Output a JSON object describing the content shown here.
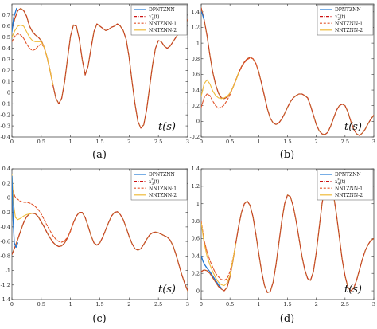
{
  "colors": {
    "DPNTZNN": "#1f77d4",
    "x1_star": "#cc1111",
    "NNTZNN-1": "#e2542a",
    "NNTZNN-2": "#efbb3a",
    "overlap": "#c46a32"
  },
  "chart_data": [
    {
      "type": "line",
      "panel": "a",
      "caption": "(a)",
      "xlabel": "t(s)",
      "xlim": [
        0,
        3
      ],
      "ylim": [
        -0.4,
        0.8
      ],
      "xticks": [
        0,
        0.5,
        1,
        1.5,
        2,
        2.5,
        3
      ],
      "xtick_labels": [
        "0",
        "0.5",
        "1",
        "1.5",
        "2",
        "2.5",
        "3"
      ],
      "yticks": [
        -0.4,
        -0.3,
        -0.2,
        -0.1,
        0,
        0.1,
        0.2,
        0.3,
        0.4,
        0.5,
        0.6,
        0.7
      ],
      "ytick_labels": [
        "-0.4",
        "-0.3",
        "-0.2",
        "-0.1",
        "0",
        "0.1",
        "0.2",
        "0.3",
        "0.4",
        "0.5",
        "0.6",
        "0.7"
      ],
      "legend": {
        "position": "top-right",
        "entries": [
          "DPNTZNN",
          "x_1^*(t)",
          "NNTZNN-1",
          "NNTZNN-2"
        ]
      },
      "series": [
        {
          "name": "DPNTZNN",
          "style": "solid",
          "x": [
            0,
            0.03,
            0.08
          ],
          "y": [
            0.55,
            0.68,
            0.76
          ]
        },
        {
          "name": "x_1^*(t)",
          "style": "dashdot",
          "x": [
            0,
            0.05,
            0.1,
            0.15,
            0.2,
            0.25,
            0.3,
            0.35,
            0.4,
            0.45,
            0.5,
            0.55,
            0.6,
            0.65,
            0.7,
            0.75,
            0.8,
            0.85,
            0.9,
            0.95,
            1.0,
            1.05,
            1.1,
            1.15,
            1.2,
            1.25,
            1.3,
            1.35,
            1.4,
            1.45,
            1.5,
            1.55,
            1.6,
            1.65,
            1.7,
            1.75,
            1.8,
            1.85,
            1.9,
            1.95,
            2.0,
            2.05,
            2.1,
            2.15,
            2.2,
            2.25,
            2.3,
            2.35,
            2.4,
            2.45,
            2.5,
            2.55,
            2.6,
            2.65,
            2.7,
            2.75,
            2.8,
            2.85,
            2.9,
            2.95,
            3.0
          ],
          "y": [
            0.57,
            0.67,
            0.74,
            0.76,
            0.74,
            0.69,
            0.6,
            0.55,
            0.52,
            0.5,
            0.47,
            0.41,
            0.32,
            0.2,
            0.07,
            -0.05,
            -0.1,
            -0.05,
            0.1,
            0.31,
            0.51,
            0.61,
            0.6,
            0.48,
            0.3,
            0.16,
            0.24,
            0.4,
            0.55,
            0.62,
            0.6,
            0.58,
            0.56,
            0.57,
            0.59,
            0.6,
            0.62,
            0.6,
            0.56,
            0.48,
            0.32,
            0.1,
            -0.1,
            -0.26,
            -0.32,
            -0.29,
            -0.15,
            0.05,
            0.25,
            0.4,
            0.47,
            0.46,
            0.42,
            0.4,
            0.42,
            0.46,
            0.5,
            0.54,
            0.58,
            0.62,
            0.66
          ]
        },
        {
          "name": "NNTZNN-1",
          "style": "dashed",
          "x": [
            0,
            0.05,
            0.1,
            0.15,
            0.2,
            0.25,
            0.3,
            0.35,
            0.4,
            0.45,
            0.5,
            0.55,
            0.6,
            0.65,
            0.7
          ],
          "y": [
            0.46,
            0.51,
            0.53,
            0.52,
            0.49,
            0.44,
            0.4,
            0.38,
            0.39,
            0.42,
            0.44,
            0.41,
            0.32,
            0.2,
            0.07
          ]
        },
        {
          "name": "NNTZNN-2",
          "style": "solid",
          "x": [
            0,
            0.05,
            0.1,
            0.15,
            0.2,
            0.25,
            0.3,
            0.35,
            0.4,
            0.45,
            0.5,
            0.55,
            0.6,
            0.65,
            0.7
          ],
          "y": [
            0.5,
            0.56,
            0.6,
            0.61,
            0.6,
            0.55,
            0.5,
            0.47,
            0.46,
            0.46,
            0.46,
            0.41,
            0.32,
            0.2,
            0.07
          ]
        }
      ]
    },
    {
      "type": "line",
      "panel": "b",
      "caption": "(b)",
      "xlabel": "t(s)",
      "xlim": [
        0,
        3
      ],
      "ylim": [
        -0.2,
        1.5
      ],
      "xticks": [
        0,
        0.5,
        1,
        1.5,
        2,
        2.5,
        3
      ],
      "xtick_labels": [
        "0",
        "0.5",
        "1",
        "1.5",
        "2",
        "2.5",
        "3"
      ],
      "yticks": [
        -0.2,
        0,
        0.2,
        0.4,
        0.6,
        0.8,
        1,
        1.2,
        1.4
      ],
      "ytick_labels": [
        "-0.2",
        "0",
        "0.2",
        "0.4",
        "0.6",
        "0.8",
        "1",
        "1.2",
        "1.4"
      ],
      "legend": {
        "position": "top-right",
        "entries": [
          "DPNTZNN",
          "x_2^*(t)",
          "NNTZNN-1",
          "NNTZNN-2"
        ]
      },
      "series": [
        {
          "name": "DPNTZNN",
          "style": "solid",
          "x": [
            0,
            0.02,
            0.05
          ],
          "y": [
            1.4,
            1.37,
            1.3
          ]
        },
        {
          "name": "x_2^*(t)",
          "style": "dashdot",
          "x": [
            0,
            0.05,
            0.1,
            0.15,
            0.2,
            0.25,
            0.3,
            0.35,
            0.4,
            0.45,
            0.5,
            0.55,
            0.6,
            0.65,
            0.7,
            0.75,
            0.8,
            0.85,
            0.9,
            0.95,
            1.0,
            1.05,
            1.1,
            1.15,
            1.2,
            1.25,
            1.3,
            1.35,
            1.4,
            1.45,
            1.5,
            1.55,
            1.6,
            1.65,
            1.7,
            1.75,
            1.8,
            1.85,
            1.9,
            1.95,
            2.0,
            2.05,
            2.1,
            2.15,
            2.2,
            2.25,
            2.3,
            2.35,
            2.4,
            2.45,
            2.5,
            2.55,
            2.6,
            2.65,
            2.7,
            2.75,
            2.8,
            2.85,
            2.9,
            2.95,
            3.0
          ],
          "y": [
            1.45,
            1.3,
            1.1,
            0.85,
            0.63,
            0.47,
            0.36,
            0.3,
            0.29,
            0.31,
            0.36,
            0.43,
            0.52,
            0.62,
            0.7,
            0.76,
            0.8,
            0.82,
            0.8,
            0.74,
            0.63,
            0.48,
            0.32,
            0.16,
            0.04,
            -0.02,
            -0.04,
            -0.02,
            0.03,
            0.1,
            0.18,
            0.25,
            0.3,
            0.33,
            0.35,
            0.35,
            0.33,
            0.3,
            0.2,
            0.08,
            -0.04,
            -0.12,
            -0.16,
            -0.17,
            -0.14,
            -0.06,
            0.04,
            0.14,
            0.2,
            0.22,
            0.2,
            0.12,
            0.0,
            -0.1,
            -0.16,
            -0.18,
            -0.15,
            -0.1,
            -0.03,
            0.03,
            0.08
          ]
        },
        {
          "name": "NNTZNN-1",
          "style": "dashed",
          "x": [
            0,
            0.05,
            0.1,
            0.15,
            0.2,
            0.25,
            0.3,
            0.35,
            0.4,
            0.45,
            0.5,
            0.55,
            0.6,
            0.65,
            0.7,
            0.75,
            0.8,
            0.85,
            0.9,
            0.95,
            1.0
          ],
          "y": [
            0.18,
            0.3,
            0.35,
            0.33,
            0.26,
            0.2,
            0.17,
            0.18,
            0.21,
            0.27,
            0.34,
            0.43,
            0.53,
            0.62,
            0.69,
            0.75,
            0.79,
            0.81,
            0.8,
            0.74,
            0.63
          ]
        },
        {
          "name": "NNTZNN-2",
          "style": "solid",
          "x": [
            0,
            0.05,
            0.1,
            0.15,
            0.2,
            0.25,
            0.3,
            0.35,
            0.4,
            0.45,
            0.5,
            0.55,
            0.6,
            0.65
          ],
          "y": [
            0.32,
            0.48,
            0.53,
            0.48,
            0.39,
            0.33,
            0.3,
            0.29,
            0.3,
            0.32,
            0.36,
            0.43,
            0.52,
            0.62
          ]
        }
      ]
    },
    {
      "type": "line",
      "panel": "c",
      "caption": "(c)",
      "xlabel": "t(s)",
      "xlim": [
        0,
        3
      ],
      "ylim": [
        -1.4,
        0.4
      ],
      "xticks": [
        0,
        0.5,
        1,
        1.5,
        2,
        2.5,
        3
      ],
      "xtick_labels": [
        "0",
        "0.5",
        "1",
        "1.5",
        "2",
        "2.5",
        "3"
      ],
      "yticks": [
        -1.4,
        -1.2,
        -1,
        -0.8,
        -0.6,
        -0.4,
        -0.2,
        0,
        0.2,
        0.4
      ],
      "ytick_labels": [
        "-1.4",
        "-1.2",
        "-1",
        "-0.8",
        "-0.6",
        "-0.4",
        "-0.2",
        "0",
        "0.2",
        "0.4"
      ],
      "legend": {
        "position": "top-right",
        "entries": [
          "DPNTZNN",
          "x_3^*(t)",
          "NNTZNN-1",
          "NNTZNN-2"
        ]
      },
      "series": [
        {
          "name": "DPNTZNN",
          "style": "solid",
          "x": [
            0,
            0.02,
            0.04,
            0.07,
            0.1
          ],
          "y": [
            0.3,
            -0.3,
            -0.62,
            -0.68,
            -0.62
          ]
        },
        {
          "name": "x_3^*(t)",
          "style": "dashdot",
          "x": [
            0,
            0.05,
            0.1,
            0.15,
            0.2,
            0.25,
            0.3,
            0.35,
            0.4,
            0.45,
            0.5,
            0.55,
            0.6,
            0.65,
            0.7,
            0.75,
            0.8,
            0.85,
            0.9,
            0.95,
            1.0,
            1.05,
            1.1,
            1.15,
            1.2,
            1.25,
            1.3,
            1.35,
            1.4,
            1.45,
            1.5,
            1.55,
            1.6,
            1.65,
            1.7,
            1.75,
            1.8,
            1.85,
            1.9,
            1.95,
            2.0,
            2.05,
            2.1,
            2.15,
            2.2,
            2.25,
            2.3,
            2.35,
            2.4,
            2.45,
            2.5,
            2.55,
            2.6,
            2.65,
            2.7,
            2.75,
            2.8,
            2.85,
            2.9,
            2.95,
            3.0
          ],
          "y": [
            -0.78,
            -0.68,
            -0.57,
            -0.45,
            -0.34,
            -0.26,
            -0.22,
            -0.21,
            -0.22,
            -0.26,
            -0.33,
            -0.4,
            -0.48,
            -0.55,
            -0.61,
            -0.65,
            -0.67,
            -0.66,
            -0.62,
            -0.55,
            -0.45,
            -0.34,
            -0.25,
            -0.2,
            -0.2,
            -0.27,
            -0.39,
            -0.52,
            -0.62,
            -0.65,
            -0.62,
            -0.54,
            -0.44,
            -0.34,
            -0.25,
            -0.2,
            -0.19,
            -0.23,
            -0.3,
            -0.41,
            -0.53,
            -0.63,
            -0.7,
            -0.72,
            -0.7,
            -0.64,
            -0.57,
            -0.51,
            -0.48,
            -0.47,
            -0.48,
            -0.5,
            -0.52,
            -0.54,
            -0.58,
            -0.66,
            -0.78,
            -0.92,
            -1.06,
            -1.18,
            -1.28
          ]
        },
        {
          "name": "NNTZNN-1",
          "style": "dashed",
          "x": [
            0,
            0.05,
            0.1,
            0.15,
            0.2,
            0.25,
            0.3,
            0.35,
            0.4,
            0.45,
            0.5,
            0.55,
            0.6,
            0.65,
            0.7,
            0.75,
            0.8,
            0.85,
            0.9,
            0.95,
            1.0,
            1.05
          ],
          "y": [
            0.15,
            0.02,
            -0.02,
            -0.05,
            -0.06,
            -0.06,
            -0.07,
            -0.09,
            -0.12,
            -0.16,
            -0.22,
            -0.3,
            -0.38,
            -0.45,
            -0.52,
            -0.57,
            -0.6,
            -0.61,
            -0.59,
            -0.54,
            -0.46,
            -0.34
          ]
        },
        {
          "name": "NNTZNN-2",
          "style": "solid",
          "x": [
            0,
            0.03,
            0.06,
            0.1,
            0.15,
            0.2,
            0.25,
            0.3,
            0.35
          ],
          "y": [
            0.32,
            -0.1,
            -0.27,
            -0.3,
            -0.28,
            -0.25,
            -0.23,
            -0.22,
            -0.21
          ]
        }
      ]
    },
    {
      "type": "line",
      "panel": "d",
      "caption": "(d)",
      "xlabel": "t(s)",
      "xlim": [
        0,
        3
      ],
      "ylim": [
        -0.1,
        1.4
      ],
      "xticks": [
        0,
        0.5,
        1,
        1.5,
        2,
        2.5,
        3
      ],
      "xtick_labels": [
        "0",
        "0.5",
        "1",
        "1.5",
        "2",
        "2.5",
        "3"
      ],
      "yticks": [
        0,
        0.2,
        0.4,
        0.6,
        0.8,
        1,
        1.2,
        1.4
      ],
      "ytick_labels": [
        "0",
        "0.2",
        "0.4",
        "0.6",
        "0.8",
        "1",
        "1.2",
        "1.4"
      ],
      "legend": {
        "position": "top-right",
        "entries": [
          "DPNTZNN",
          "x_4^*(t)",
          "NNTZNN-1",
          "NNTZNN-2"
        ]
      },
      "series": [
        {
          "name": "DPNTZNN",
          "style": "solid",
          "x": [
            0,
            0.03,
            0.06,
            0.1,
            0.15,
            0.2,
            0.25,
            0.3,
            0.35
          ],
          "y": [
            0.4,
            0.34,
            0.3,
            0.26,
            0.22,
            0.17,
            0.12,
            0.07,
            0.03
          ]
        },
        {
          "name": "x_4^*(t)",
          "style": "dashdot",
          "x": [
            0,
            0.05,
            0.1,
            0.15,
            0.2,
            0.25,
            0.3,
            0.35,
            0.4,
            0.45,
            0.5,
            0.55,
            0.6,
            0.65,
            0.7,
            0.75,
            0.8,
            0.85,
            0.9,
            0.95,
            1.0,
            1.05,
            1.1,
            1.15,
            1.2,
            1.25,
            1.3,
            1.35,
            1.4,
            1.45,
            1.5,
            1.55,
            1.6,
            1.65,
            1.7,
            1.75,
            1.8,
            1.85,
            1.9,
            1.95,
            2.0,
            2.05,
            2.1,
            2.15,
            2.2,
            2.25,
            2.3,
            2.35,
            2.4,
            2.45,
            2.5,
            2.55,
            2.6,
            2.65,
            2.7,
            2.75,
            2.8,
            2.85,
            2.9,
            2.95,
            3.0
          ],
          "y": [
            0.22,
            0.24,
            0.23,
            0.2,
            0.15,
            0.1,
            0.05,
            0.02,
            0.0,
            0.04,
            0.16,
            0.34,
            0.54,
            0.74,
            0.9,
            1.0,
            1.03,
            0.98,
            0.85,
            0.65,
            0.43,
            0.22,
            0.06,
            -0.02,
            -0.01,
            0.1,
            0.3,
            0.55,
            0.8,
            1.0,
            1.1,
            1.08,
            0.97,
            0.8,
            0.6,
            0.4,
            0.24,
            0.14,
            0.12,
            0.22,
            0.44,
            0.72,
            1.0,
            1.2,
            1.28,
            1.24,
            1.1,
            0.88,
            0.62,
            0.36,
            0.17,
            0.04,
            0.0,
            0.03,
            0.12,
            0.24,
            0.36,
            0.46,
            0.53,
            0.58,
            0.6
          ]
        },
        {
          "name": "NNTZNN-1",
          "style": "dashed",
          "x": [
            0,
            0.05,
            0.1,
            0.15,
            0.2,
            0.25,
            0.3,
            0.35,
            0.4,
            0.45,
            0.5,
            0.55,
            0.6
          ],
          "y": [
            0.8,
            0.58,
            0.45,
            0.35,
            0.27,
            0.2,
            0.16,
            0.13,
            0.12,
            0.14,
            0.22,
            0.36,
            0.54
          ]
        },
        {
          "name": "NNTZNN-2",
          "style": "solid",
          "x": [
            0,
            0.05,
            0.1,
            0.15,
            0.2,
            0.25,
            0.3,
            0.35,
            0.4,
            0.45,
            0.5,
            0.55,
            0.6
          ],
          "y": [
            0.78,
            0.55,
            0.4,
            0.3,
            0.22,
            0.15,
            0.1,
            0.07,
            0.06,
            0.09,
            0.18,
            0.35,
            0.54
          ]
        }
      ]
    }
  ]
}
